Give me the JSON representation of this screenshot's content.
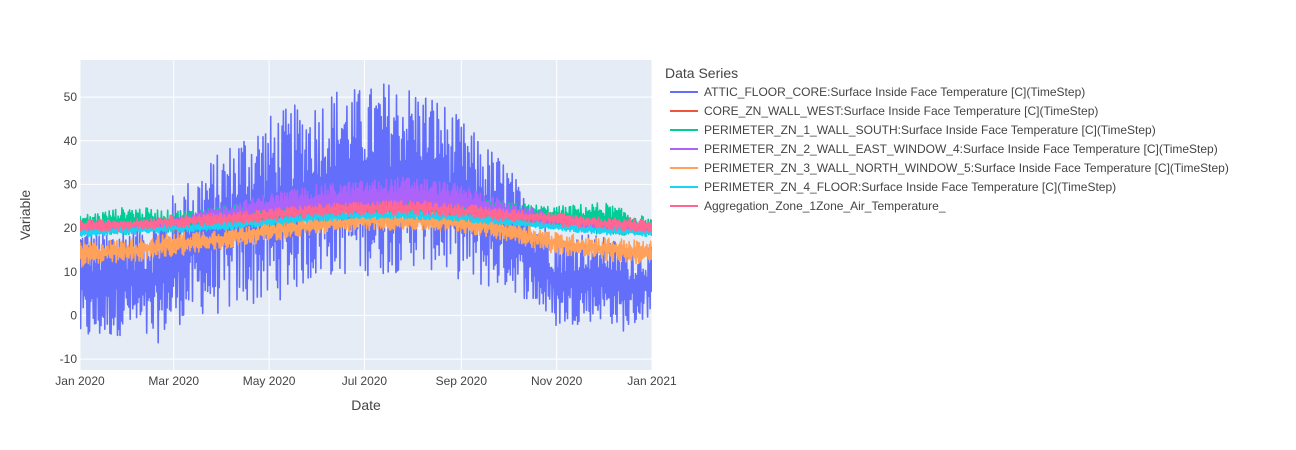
{
  "chart_data": {
    "type": "line",
    "xlabel": "Date",
    "ylabel": "Variable",
    "legend_title": "Data Series",
    "legend_placement": "right",
    "grid": true,
    "xlim": [
      "2020-01-01",
      "2021-01-01"
    ],
    "ylim": [
      -12.5,
      58.5
    ],
    "x_ticks": [
      {
        "date": "2020-01-01",
        "label": "Jan 2020"
      },
      {
        "date": "2020-03-01",
        "label": "Mar 2020"
      },
      {
        "date": "2020-05-01",
        "label": "May 2020"
      },
      {
        "date": "2020-07-01",
        "label": "Jul 2020"
      },
      {
        "date": "2020-09-01",
        "label": "Sep 2020"
      },
      {
        "date": "2020-11-01",
        "label": "Nov 2020"
      },
      {
        "date": "2021-01-01",
        "label": "Jan 2021"
      }
    ],
    "y_ticks": [
      -10,
      0,
      10,
      20,
      30,
      40,
      50
    ],
    "series": [
      {
        "name": "ATTIC_FLOOR_CORE:Surface Inside Face Temperature [C](TimeStep)",
        "color": "#636efa",
        "x": [
          "2020-01-01",
          "2020-01-15",
          "2020-02-01",
          "2020-02-15",
          "2020-03-01",
          "2020-03-15",
          "2020-04-01",
          "2020-04-15",
          "2020-05-01",
          "2020-05-15",
          "2020-06-01",
          "2020-06-15",
          "2020-07-01",
          "2020-07-15",
          "2020-08-01",
          "2020-08-15",
          "2020-09-01",
          "2020-09-15",
          "2020-10-01",
          "2020-10-15",
          "2020-11-01",
          "2020-11-15",
          "2020-12-01",
          "2020-12-15",
          "2021-01-01"
        ],
        "min": [
          -7,
          -6,
          -4,
          -8,
          -3,
          0,
          0,
          2,
          2,
          5,
          8,
          9,
          9,
          9,
          11,
          10,
          8,
          6,
          6,
          3,
          -3,
          -2,
          -1,
          -4,
          0
        ],
        "max": [
          22,
          20,
          22,
          23,
          28,
          33,
          38,
          43,
          46,
          48,
          50,
          53,
          52,
          54,
          53,
          51,
          45,
          40,
          35,
          25,
          19,
          20,
          18,
          17,
          16
        ]
      },
      {
        "name": "CORE_ZN_WALL_WEST:Surface Inside Face Temperature [C](TimeStep)",
        "color": "#ef553b",
        "x": [
          "2020-01-01",
          "2020-02-01",
          "2020-03-01",
          "2020-04-01",
          "2020-05-01",
          "2020-06-01",
          "2020-07-01",
          "2020-08-01",
          "2020-09-01",
          "2020-10-01",
          "2020-11-01",
          "2020-12-01",
          "2021-01-01"
        ],
        "min": [
          18.5,
          19,
          19.5,
          20,
          21,
          22,
          23,
          23,
          22.5,
          21.5,
          20,
          19,
          18.5
        ],
        "max": [
          21,
          21.5,
          22,
          23,
          24,
          25,
          25.5,
          25.5,
          25,
          24,
          22.5,
          21.5,
          21
        ]
      },
      {
        "name": "PERIMETER_ZN_1_WALL_SOUTH:Surface Inside Face Temperature [C](TimeStep)",
        "color": "#00cc96",
        "x": [
          "2020-01-01",
          "2020-02-01",
          "2020-03-01",
          "2020-04-01",
          "2020-05-01",
          "2020-06-01",
          "2020-07-01",
          "2020-08-01",
          "2020-09-01",
          "2020-10-01",
          "2020-11-01",
          "2020-12-01",
          "2021-01-01"
        ],
        "min": [
          18,
          18.5,
          19,
          20,
          21,
          22,
          22.5,
          22.5,
          22,
          21,
          19.5,
          18.5,
          18
        ],
        "max": [
          23,
          25,
          24,
          25,
          26,
          26.5,
          27,
          27,
          27,
          26,
          25,
          26,
          22
        ]
      },
      {
        "name": "PERIMETER_ZN_2_WALL_EAST_WINDOW_4:Surface Inside Face Temperature [C](TimeStep)",
        "color": "#ab63fa",
        "x": [
          "2020-01-01",
          "2020-02-01",
          "2020-03-01",
          "2020-04-01",
          "2020-05-01",
          "2020-06-01",
          "2020-07-01",
          "2020-08-01",
          "2020-09-01",
          "2020-10-01",
          "2020-11-01",
          "2020-12-01",
          "2021-01-01"
        ],
        "min": [
          19,
          19.5,
          20,
          21,
          22,
          22.5,
          23,
          23,
          22.5,
          21.5,
          20,
          19,
          19
        ],
        "max": [
          21,
          21.5,
          22.5,
          25,
          28,
          30,
          31,
          32,
          30,
          26,
          23,
          21.5,
          21
        ]
      },
      {
        "name": "PERIMETER_ZN_3_WALL_NORTH_WINDOW_5:Surface Inside Face Temperature [C](TimeStep)",
        "color": "#ffa15a",
        "x": [
          "2020-01-01",
          "2020-02-01",
          "2020-03-01",
          "2020-04-01",
          "2020-05-01",
          "2020-06-01",
          "2020-07-01",
          "2020-08-01",
          "2020-09-01",
          "2020-10-01",
          "2020-11-01",
          "2020-12-01",
          "2021-01-01"
        ],
        "min": [
          11,
          12,
          13.5,
          15,
          17,
          18.5,
          19.5,
          19.5,
          19,
          17,
          14,
          12.5,
          11.5
        ],
        "max": [
          17,
          17.5,
          19,
          20,
          22,
          23,
          24,
          24,
          23.5,
          22,
          19,
          18,
          17
        ]
      },
      {
        "name": "PERIMETER_ZN_4_FLOOR:Surface Inside Face Temperature [C](TimeStep)",
        "color": "#19d3f3",
        "x": [
          "2020-01-01",
          "2020-02-01",
          "2020-03-01",
          "2020-04-01",
          "2020-05-01",
          "2020-06-01",
          "2020-07-01",
          "2020-08-01",
          "2020-09-01",
          "2020-10-01",
          "2020-11-01",
          "2020-12-01",
          "2021-01-01"
        ],
        "min": [
          18,
          18.5,
          19,
          19.5,
          20.5,
          21.5,
          22,
          22,
          21.5,
          20.5,
          19.5,
          18.5,
          18
        ],
        "max": [
          20,
          20.5,
          21,
          21.5,
          22.5,
          23.5,
          24,
          24,
          23.5,
          22.5,
          21,
          20.5,
          20
        ]
      },
      {
        "name": "Aggregation_Zone_1Zone_Air_Temperature_",
        "color": "#ff6692",
        "x": [
          "2020-01-01",
          "2020-02-01",
          "2020-03-01",
          "2020-04-01",
          "2020-05-01",
          "2020-06-01",
          "2020-07-01",
          "2020-08-01",
          "2020-09-01",
          "2020-10-01",
          "2020-11-01",
          "2020-12-01",
          "2021-01-01"
        ],
        "min": [
          19,
          19.5,
          20,
          20.5,
          21.5,
          22.5,
          23,
          23,
          22.5,
          21.5,
          20.5,
          19.5,
          19
        ],
        "max": [
          22,
          22,
          23,
          23.5,
          24.5,
          25.5,
          26,
          26.5,
          25.5,
          24.5,
          23.5,
          22.5,
          22
        ]
      }
    ]
  }
}
